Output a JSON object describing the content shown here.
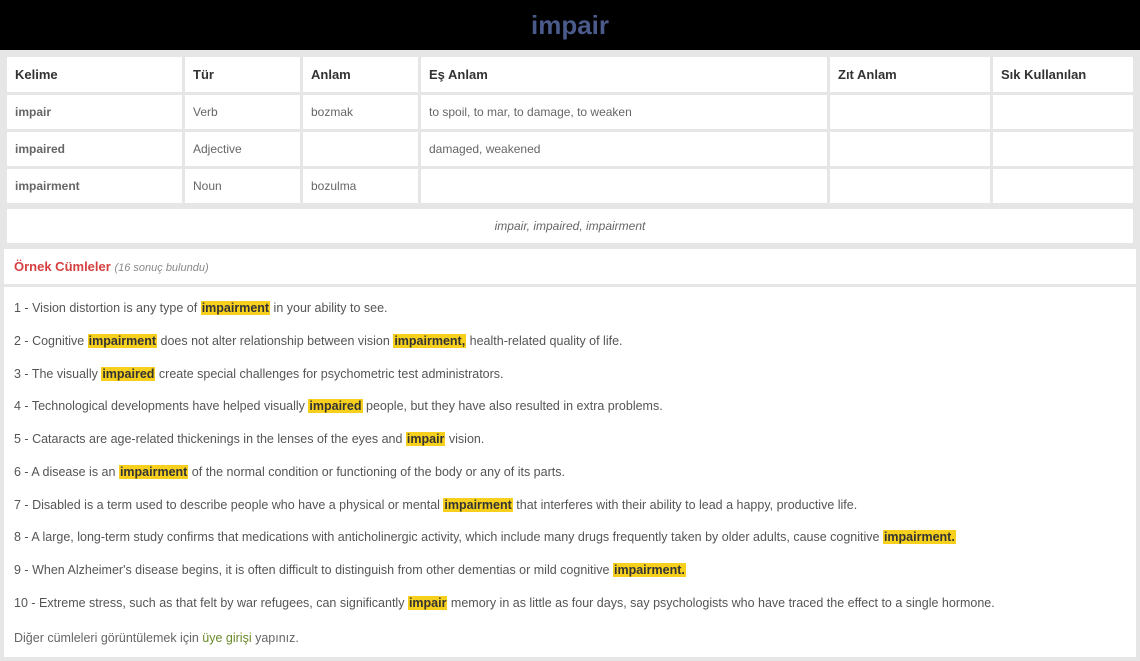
{
  "header": {
    "title": "impair"
  },
  "table": {
    "columns": [
      "Kelime",
      "Tür",
      "Anlam",
      "Eş Anlam",
      "Zıt Anlam",
      "Sık Kullanılan"
    ],
    "rows": [
      {
        "kelime": "impair",
        "kelime_link": true,
        "tur": "Verb",
        "anlam": "bozmak",
        "es": "to spoil, to mar, to damage, to weaken",
        "zit": "",
        "sik": ""
      },
      {
        "kelime": "impaired",
        "kelime_link": false,
        "tur": "Adjective",
        "anlam": "",
        "es": "damaged, weakened",
        "zit": "",
        "sik": ""
      },
      {
        "kelime": "impairment",
        "kelime_link": false,
        "tur": "Noun",
        "anlam": "bozulma",
        "es": "",
        "zit": "",
        "sik": ""
      }
    ],
    "italic_summary": "impair, impaired, impairment"
  },
  "ornek": {
    "title": "Örnek Cümleler",
    "count_text": "(16 sonuç bulundu)"
  },
  "sentences": [
    {
      "n": "1",
      "parts": [
        {
          "t": "Vision distortion is any type of "
        },
        {
          "h": "impairment"
        },
        {
          "t": " in your ability to see."
        }
      ]
    },
    {
      "n": "2",
      "parts": [
        {
          "t": "Cognitive "
        },
        {
          "h": "impairment"
        },
        {
          "t": " does not alter relationship between vision "
        },
        {
          "h": "impairment,"
        },
        {
          "t": " health-related quality of life."
        }
      ]
    },
    {
      "n": "3",
      "parts": [
        {
          "t": "The visually "
        },
        {
          "h": "impaired"
        },
        {
          "t": " create special challenges for psychometric test administrators."
        }
      ]
    },
    {
      "n": "4",
      "parts": [
        {
          "t": "Technological developments have helped visually "
        },
        {
          "h": "impaired"
        },
        {
          "t": " people, but they have also resulted in extra problems."
        }
      ]
    },
    {
      "n": "5",
      "parts": [
        {
          "t": "Cataracts are age-related thickenings in the lenses of the eyes and "
        },
        {
          "h": "impair"
        },
        {
          "t": " vision."
        }
      ]
    },
    {
      "n": "6",
      "parts": [
        {
          "t": "A disease is an "
        },
        {
          "h": "impairment"
        },
        {
          "t": " of the normal condition or functioning of the body or any of its parts."
        }
      ]
    },
    {
      "n": "7",
      "parts": [
        {
          "t": "Disabled is a term used to describe people who have a physical or mental "
        },
        {
          "h": "impairment"
        },
        {
          "t": " that interferes with their ability to lead a happy, productive life."
        }
      ]
    },
    {
      "n": "8",
      "parts": [
        {
          "t": "A large, long-term study confirms that medications with anticholinergic activity, which include many drugs frequently taken by older adults, cause cognitive "
        },
        {
          "h": "impairment."
        }
      ]
    },
    {
      "n": "9",
      "parts": [
        {
          "t": "When Alzheimer's disease begins, it is often difficult to distinguish from other dementias or mild cognitive "
        },
        {
          "h": "impairment."
        }
      ]
    },
    {
      "n": "10",
      "parts": [
        {
          "t": "Extreme stress, such as that felt by war refugees, can significantly "
        },
        {
          "h": "impair"
        },
        {
          "t": " memory in as little as four days, say psychologists who have traced the effect to a single hormone."
        }
      ]
    }
  ],
  "login_note": {
    "prefix": "Diğer cümleleri görüntülemek için ",
    "link": "üye girişi",
    "suffix": " yapınız."
  }
}
